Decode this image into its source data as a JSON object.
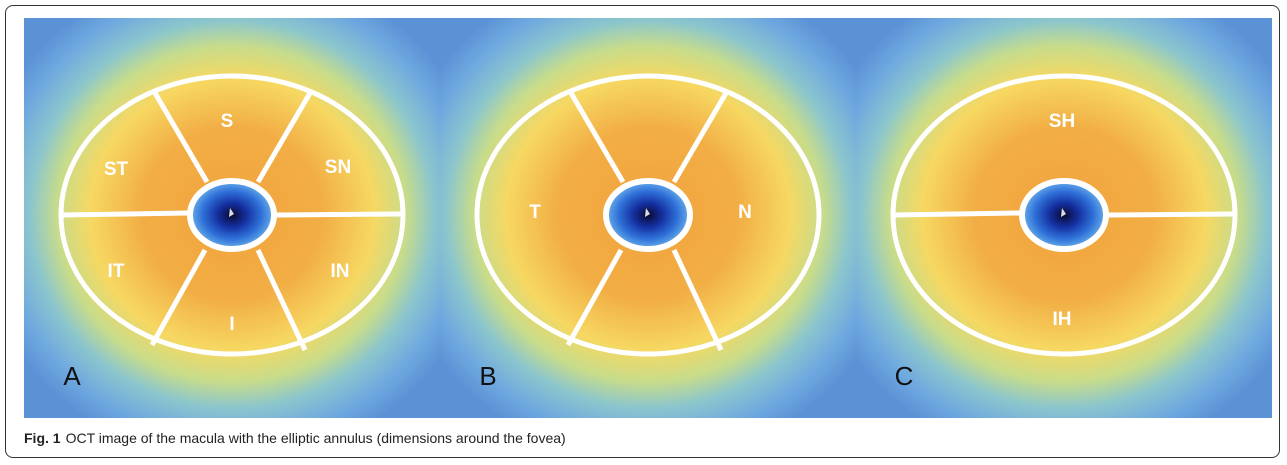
{
  "panels": [
    {
      "letter": "A",
      "sectors": [
        "S",
        "ST",
        "SN",
        "IT",
        "IN",
        "I"
      ]
    },
    {
      "letter": "B",
      "sectors": [
        "T",
        "N"
      ]
    },
    {
      "letter": "C",
      "sectors": [
        "SH",
        "IH"
      ]
    }
  ],
  "caption": {
    "label": "Fig. 1",
    "text": "OCT image of the macula with the elliptic annulus (dimensions around the fovea)"
  }
}
